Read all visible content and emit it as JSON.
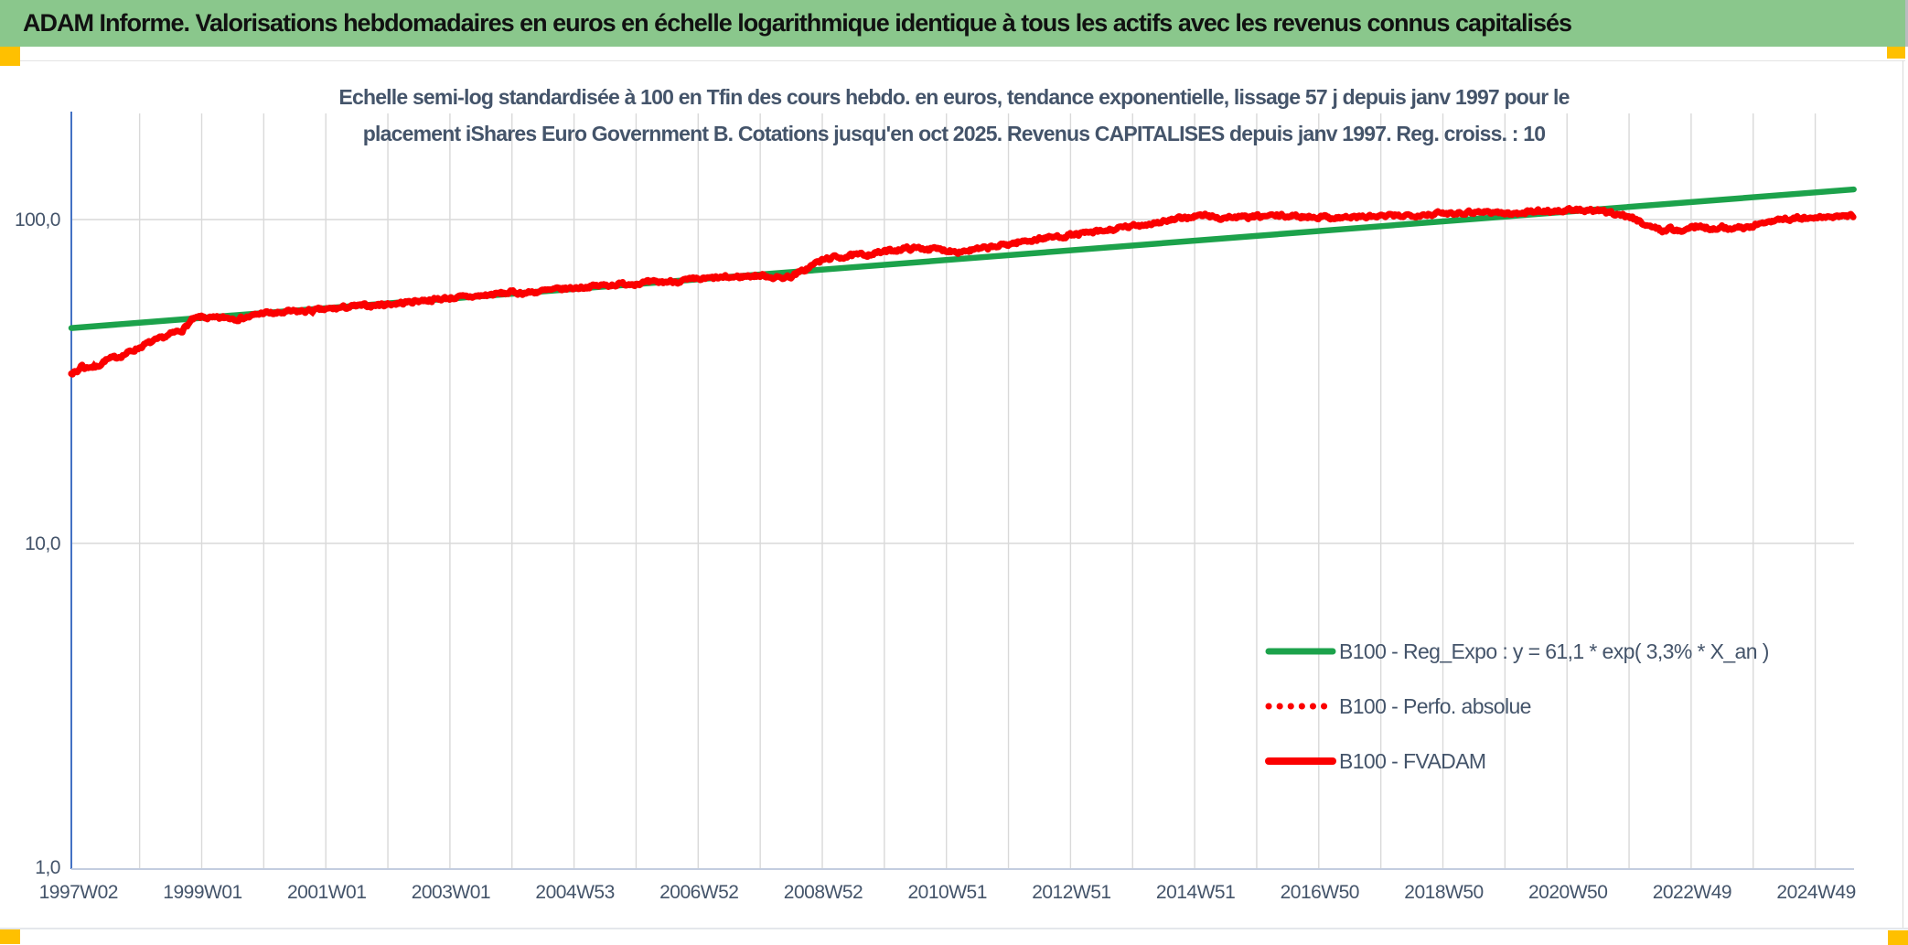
{
  "header": {
    "title": "ADAM Informe. Valorisations hebdomadaires en euros en échelle logarithmique identique à tous les actifs avec les revenus connus capitalisés",
    "bg_color": "#8AC78C",
    "accent_square_color": "#FFC000"
  },
  "chart": {
    "title_line1": "Echelle semi-log standardisée à 100 en Tfin des cours hebdo. en euros, tendance exponentielle, lissage 57 j depuis janv 1997 pour le",
    "title_line2": "placement iShares Euro Government B. Cotations jusqu'en oct 2025. Revenus CAPITALISES depuis janv 1997. Reg. croiss. : 10",
    "title_color": "#44546A",
    "legend": [
      {
        "label": "B100 - Reg_Expo : y = 61,1 * exp( 3,3% *  X_an )",
        "color": "#1CA24B",
        "style": "solid",
        "weight": 7
      },
      {
        "label": "B100 - Perfo. absolue",
        "color": "#FB0000",
        "style": "dotted",
        "weight": 7
      },
      {
        "label": "B100 - FVADAM",
        "color": "#FB0000",
        "style": "solid",
        "weight": 8
      }
    ]
  },
  "chart_data": {
    "type": "line",
    "title": "Echelle semi-log standardisée à 100 en Tfin des cours hebdo. en euros, tendance exponentielle, lissage 57 j depuis janv 1997 pour le placement iShares Euro Government B. Cotations jusqu'en oct 2025. Revenus CAPITALISES depuis janv 1997. Reg. croiss. : 10",
    "x_axis": {
      "tick_labels": [
        "1997W02",
        "1999W01",
        "2001W01",
        "2003W01",
        "2004W53",
        "2006W52",
        "2008W52",
        "2010W51",
        "2012W51",
        "2014W51",
        "2016W50",
        "2018W50",
        "2020W50",
        "2022W49",
        "2024W49"
      ],
      "tick_years": [
        1997,
        1999,
        2001,
        2003,
        2005,
        2007,
        2009,
        2011,
        2013,
        2015,
        2017,
        2019,
        2021,
        2023,
        2025
      ],
      "range_years": [
        1996.9,
        2025.62
      ],
      "grid_every_years": 1
    },
    "y_axis": {
      "scale": "log10",
      "tick_labels": [
        "100,0",
        "10,0",
        "1,0"
      ],
      "tick_values": [
        100.0,
        10.0,
        1.0
      ],
      "range": [
        1.0,
        210.0
      ],
      "grid_values": [
        10.0,
        100.0
      ]
    },
    "legend_position": "inside-right-lower",
    "grid": true,
    "series": [
      {
        "name": "B100 - Reg_Expo : y = 61,1 * exp( 3,3% *  X_an )",
        "type": "exponential-trend",
        "formula": "y = 61,1 * exp( 3,3% * X_an )",
        "color": "#1CA24B",
        "line_style": "solid",
        "points": [
          [
            1997.0,
            46.4
          ],
          [
            2025.6,
            123.8
          ]
        ]
      },
      {
        "name": "B100 - Perfo. absolue",
        "type": "line",
        "color": "#FB0000",
        "line_style": "dotted",
        "note": "coincides with B100 - FVADAM and is hidden beneath it on the chart"
      },
      {
        "name": "B100 - FVADAM",
        "type": "weekly-line",
        "color": "#FB0000",
        "line_style": "solid",
        "points": [
          [
            1997.0,
            33.8
          ],
          [
            1997.06,
            35.6
          ],
          [
            1997.12,
            34.8
          ],
          [
            1997.2,
            35.2
          ],
          [
            1997.3,
            35.0
          ],
          [
            1997.45,
            36.8
          ],
          [
            1997.6,
            37.4
          ],
          [
            1997.75,
            38.3
          ],
          [
            1997.9,
            39.5
          ],
          [
            1998.1,
            41.2
          ],
          [
            1998.3,
            42.5
          ],
          [
            1998.5,
            44.2
          ],
          [
            1998.7,
            45.8
          ],
          [
            1998.85,
            49.0
          ],
          [
            1999.0,
            50.0
          ],
          [
            1999.2,
            49.4
          ],
          [
            1999.4,
            49.8
          ],
          [
            1999.6,
            49.5
          ],
          [
            1999.8,
            50.2
          ],
          [
            2000.0,
            51.6
          ],
          [
            2000.2,
            51.2
          ],
          [
            2000.4,
            51.9
          ],
          [
            2000.6,
            52.0
          ],
          [
            2000.8,
            52.4
          ],
          [
            2001.0,
            52.7
          ],
          [
            2001.25,
            53.4
          ],
          [
            2001.5,
            54.0
          ],
          [
            2001.75,
            54.3
          ],
          [
            2002.0,
            54.8
          ],
          [
            2002.25,
            55.3
          ],
          [
            2002.5,
            56.2
          ],
          [
            2002.75,
            56.6
          ],
          [
            2003.0,
            57.3
          ],
          [
            2003.25,
            57.6
          ],
          [
            2003.5,
            58.1
          ],
          [
            2003.75,
            58.9
          ],
          [
            2004.0,
            59.6
          ],
          [
            2004.2,
            59.3
          ],
          [
            2004.4,
            59.9
          ],
          [
            2004.6,
            60.4
          ],
          [
            2004.8,
            61.0
          ],
          [
            2005.0,
            61.5
          ],
          [
            2005.3,
            62.2
          ],
          [
            2005.6,
            62.9
          ],
          [
            2006.0,
            63.6
          ],
          [
            2006.3,
            63.9
          ],
          [
            2006.6,
            64.4
          ],
          [
            2007.0,
            65.3
          ],
          [
            2007.3,
            66.0
          ],
          [
            2007.6,
            66.4
          ],
          [
            2007.9,
            67.1
          ],
          [
            2008.1,
            67.0
          ],
          [
            2008.3,
            66.0
          ],
          [
            2008.5,
            66.8
          ],
          [
            2008.7,
            69.5
          ],
          [
            2008.9,
            73.5
          ],
          [
            2009.1,
            76.0
          ],
          [
            2009.4,
            77.0
          ],
          [
            2009.7,
            78.0
          ],
          [
            2010.0,
            79.5
          ],
          [
            2010.3,
            81.3
          ],
          [
            2010.6,
            81.6
          ],
          [
            2010.9,
            80.8
          ],
          [
            2011.2,
            79.8
          ],
          [
            2011.5,
            80.8
          ],
          [
            2011.8,
            82.5
          ],
          [
            2012.0,
            84.0
          ],
          [
            2012.3,
            86.0
          ],
          [
            2012.6,
            87.8
          ],
          [
            2012.9,
            89.0
          ],
          [
            2013.2,
            90.5
          ],
          [
            2013.5,
            91.8
          ],
          [
            2013.8,
            94.0
          ],
          [
            2014.1,
            96.0
          ],
          [
            2014.4,
            98.0
          ],
          [
            2014.7,
            100.0
          ],
          [
            2015.0,
            102.5
          ],
          [
            2015.2,
            103.0
          ],
          [
            2015.4,
            101.0
          ],
          [
            2015.6,
            101.8
          ],
          [
            2015.8,
            101.5
          ],
          [
            2016.0,
            102.0
          ],
          [
            2016.3,
            102.8
          ],
          [
            2016.6,
            102.3
          ],
          [
            2017.0,
            102.0
          ],
          [
            2017.3,
            101.4
          ],
          [
            2017.6,
            101.8
          ],
          [
            2018.0,
            102.2
          ],
          [
            2018.4,
            103.0
          ],
          [
            2018.8,
            104.0
          ],
          [
            2019.2,
            105.0
          ],
          [
            2019.6,
            105.8
          ],
          [
            2019.9,
            105.2
          ],
          [
            2020.1,
            103.8
          ],
          [
            2020.3,
            105.6
          ],
          [
            2020.6,
            106.2
          ],
          [
            2020.9,
            106.4
          ],
          [
            2021.2,
            107.0
          ],
          [
            2021.5,
            106.0
          ],
          [
            2021.8,
            104.5
          ],
          [
            2022.0,
            102.0
          ],
          [
            2022.2,
            98.0
          ],
          [
            2022.4,
            94.5
          ],
          [
            2022.55,
            92.0
          ],
          [
            2022.65,
            94.5
          ],
          [
            2022.8,
            91.5
          ],
          [
            2022.95,
            93.8
          ],
          [
            2023.1,
            95.5
          ],
          [
            2023.3,
            94.0
          ],
          [
            2023.5,
            94.8
          ],
          [
            2023.7,
            93.6
          ],
          [
            2023.9,
            95.0
          ],
          [
            2024.1,
            96.5
          ],
          [
            2024.3,
            99.5
          ],
          [
            2024.5,
            100.5
          ],
          [
            2024.7,
            101.0
          ],
          [
            2024.9,
            100.6
          ],
          [
            2025.1,
            101.5
          ],
          [
            2025.3,
            102.0
          ],
          [
            2025.6,
            102.5
          ]
        ]
      }
    ],
    "colors": {
      "axis_line": "#4472C4",
      "x_axis_line": "#C3CDDF",
      "gridline": "#D9D9D9",
      "tick_text": "#44546A"
    }
  }
}
